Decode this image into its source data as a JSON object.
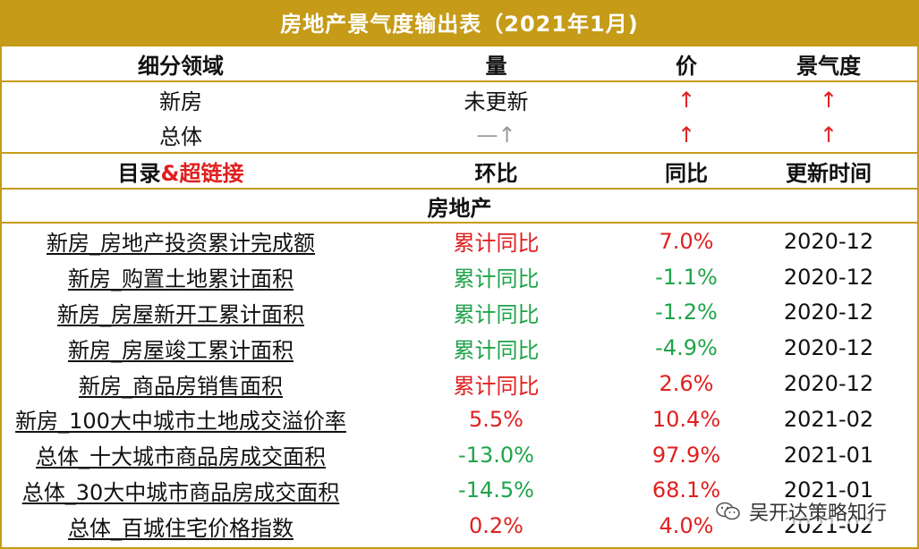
{
  "title": "房地产景气度输出表（2021年1月)",
  "header": {
    "col1": "细分领域",
    "col2": "量",
    "col3": "价",
    "col4": "景气度"
  },
  "summary": [
    {
      "area": "新房",
      "volume": "未更新",
      "price": "↑",
      "prosperity": "↑"
    },
    {
      "area": "总体",
      "volume": "—↑",
      "price": "↑",
      "prosperity": "↑"
    }
  ],
  "subheader": {
    "col1_black": "目录",
    "col1_red": "&超链接",
    "col2": "环比",
    "col3": "同比",
    "col4": "更新时间"
  },
  "section_title": "房地产",
  "rows": [
    {
      "name": "新房_房地产投资累计完成额",
      "mom": "累计同比",
      "yoy": "7.0%",
      "updated": "2020-12",
      "mom_color": "red",
      "yoy_color": "red"
    },
    {
      "name": "新房_购置土地累计面积",
      "mom": "累计同比",
      "yoy": "-1.1%",
      "updated": "2020-12",
      "mom_color": "green",
      "yoy_color": "green"
    },
    {
      "name": "新房_房屋新开工累计面积",
      "mom": "累计同比",
      "yoy": "-1.2%",
      "updated": "2020-12",
      "mom_color": "green",
      "yoy_color": "green"
    },
    {
      "name": "新房_房屋竣工累计面积",
      "mom": "累计同比",
      "yoy": "-4.9%",
      "updated": "2020-12",
      "mom_color": "green",
      "yoy_color": "green"
    },
    {
      "name": "新房_商品房销售面积",
      "mom": "累计同比",
      "yoy": "2.6%",
      "updated": "2020-12",
      "mom_color": "red",
      "yoy_color": "red"
    },
    {
      "name": "新房_100大中城市土地成交溢价率",
      "mom": "5.5%",
      "yoy": "10.4%",
      "updated": "2021-02",
      "mom_color": "red",
      "yoy_color": "red"
    },
    {
      "name": "总体_十大城市商品房成交面积",
      "mom": "-13.0%",
      "yoy": "97.9%",
      "updated": "2021-01",
      "mom_color": "green",
      "yoy_color": "red"
    },
    {
      "name": "总体_30大中城市商品房成交面积",
      "mom": "-14.5%",
      "yoy": "68.1%",
      "updated": "2021-01",
      "mom_color": "green",
      "yoy_color": "red"
    },
    {
      "name": "总体_百城住宅价格指数",
      "mom": "0.2%",
      "yoy": "4.0%",
      "updated": "2021-02",
      "mom_color": "red",
      "yoy_color": "red"
    }
  ],
  "watermark": "吴开达策略知行",
  "colors": {
    "accent": "#C59B17",
    "red": "#E02020",
    "green": "#1FA34A",
    "gray": "#9a9a9a"
  }
}
